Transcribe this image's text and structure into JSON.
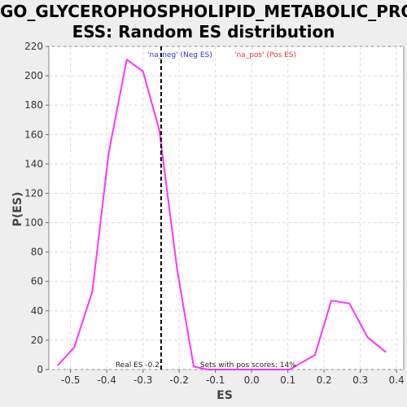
{
  "chart_data": {
    "type": "line",
    "title_line1": "GO_GLYCEROPHOSPHOLIPID_METABOLIC_PROC",
    "title_line2": "ESS: Random ES distribution",
    "xlabel": "ES",
    "ylabel": "P(ES)",
    "xlim": [
      -0.56,
      0.42
    ],
    "ylim": [
      0,
      220
    ],
    "x_ticks": [
      -0.5,
      -0.4,
      -0.3,
      -0.2,
      -0.1,
      0.0,
      0.1,
      0.2,
      0.3,
      0.4
    ],
    "x_tick_labels": [
      "-0.5",
      "-0.4",
      "-0.3",
      "-0.2",
      "-0.1",
      "0.0",
      "0.1",
      "0.2",
      "0.3",
      "0.4"
    ],
    "y_ticks": [
      0,
      20,
      40,
      60,
      80,
      100,
      120,
      140,
      160,
      180,
      200,
      220
    ],
    "y_tick_labels": [
      "0",
      "20",
      "40",
      "60",
      "80",
      "100",
      "120",
      "140",
      "160",
      "180",
      "200",
      "220"
    ],
    "grid": true,
    "series": [
      {
        "color": "#ff33ff",
        "x": [
          -0.535,
          -0.49,
          -0.44,
          -0.395,
          -0.345,
          -0.3,
          -0.255,
          -0.205,
          -0.16,
          -0.12,
          -0.075,
          -0.03,
          0.015,
          0.06,
          0.105,
          0.175,
          0.22,
          0.27,
          0.32,
          0.37
        ],
        "y": [
          3,
          15,
          53,
          147,
          211,
          203,
          163,
          67,
          2,
          0,
          0,
          0,
          0,
          0,
          0,
          10,
          47,
          45,
          22,
          12
        ]
      }
    ],
    "legend": [
      {
        "label": "'na_neg' (Neg ES)",
        "color": "#3333cc"
      },
      {
        "label": "'na_pos' (Pos ES)",
        "color": "#ee3333"
      }
    ],
    "legend_position": "top-center",
    "marker": {
      "x": -0.25,
      "style": "dashed",
      "color": "#000000",
      "label_left": "Real ES -0.2",
      "label_right": "Sets with pos scores: 14%"
    }
  }
}
